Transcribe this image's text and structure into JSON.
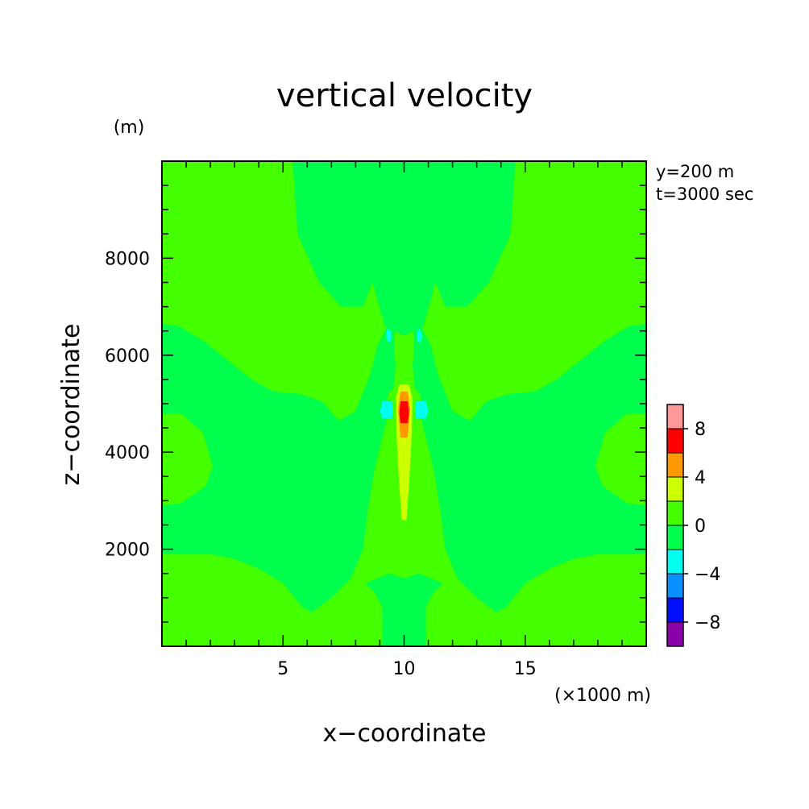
{
  "chart_data": {
    "type": "heatmap",
    "title": "vertical velocity",
    "xlabel": "x−coordinate",
    "ylabel": "z−coordinate",
    "x_unit": "(×1000 m)",
    "y_unit": "(m)",
    "annotations": [
      "y=200 m",
      "t=3000 sec"
    ],
    "xlim": [
      0,
      20
    ],
    "ylim": [
      0,
      10000
    ],
    "x_ticks": [
      5,
      10,
      15
    ],
    "y_ticks": [
      2000,
      4000,
      6000,
      8000
    ],
    "legend": {
      "placement": "right",
      "labels": [
        "8",
        "4",
        "0",
        "−4",
        "−8"
      ],
      "bins": [
        {
          "range": [
            -10,
            -8
          ],
          "color": "#8b00a8"
        },
        {
          "range": [
            -8,
            -6
          ],
          "color": "#0010ff"
        },
        {
          "range": [
            -6,
            -4
          ],
          "color": "#0a90ff"
        },
        {
          "range": [
            -4,
            -2
          ],
          "color": "#00ffee"
        },
        {
          "range": [
            -2,
            0
          ],
          "color": "#00ff4c"
        },
        {
          "range": [
            0,
            2
          ],
          "color": "#44ff00"
        },
        {
          "range": [
            2,
            4
          ],
          "color": "#ccff00"
        },
        {
          "range": [
            4,
            6
          ],
          "color": "#ff9900"
        },
        {
          "range": [
            6,
            8
          ],
          "color": "#ff0000"
        },
        {
          "range": [
            8,
            10
          ],
          "color": "#ff9999"
        }
      ]
    },
    "contour_regions": [
      {
        "name": "upper-center",
        "level_range": [
          -2,
          0
        ],
        "points": [
          [
            5.4,
            10000
          ],
          [
            14.6,
            10000
          ],
          [
            14.4,
            8500
          ],
          [
            13.5,
            7500
          ],
          [
            12.6,
            7000
          ],
          [
            11.7,
            7000
          ],
          [
            11.3,
            7500
          ],
          [
            10.8,
            6600
          ],
          [
            10.0,
            6400
          ],
          [
            9.2,
            6600
          ],
          [
            8.7,
            7500
          ],
          [
            8.3,
            7000
          ],
          [
            7.4,
            7000
          ],
          [
            6.5,
            7500
          ],
          [
            5.6,
            8500
          ]
        ]
      },
      {
        "name": "left-middle",
        "level_range": [
          -2,
          0
        ],
        "points": [
          [
            0,
            6650
          ],
          [
            0.7,
            6600
          ],
          [
            1.7,
            6300
          ],
          [
            2.7,
            5900
          ],
          [
            3.7,
            5500
          ],
          [
            4.6,
            5250
          ],
          [
            5.7,
            5200
          ],
          [
            6.6,
            5050
          ],
          [
            7.3,
            4650
          ],
          [
            8.0,
            4850
          ],
          [
            8.6,
            5600
          ],
          [
            8.9,
            6200
          ],
          [
            9.3,
            6600
          ],
          [
            9.6,
            6500
          ],
          [
            9.6,
            5800
          ],
          [
            9.3,
            5100
          ],
          [
            9.3,
            4700
          ],
          [
            8.8,
            3700
          ],
          [
            8.5,
            2800
          ],
          [
            8.3,
            2000
          ],
          [
            7.8,
            1400
          ],
          [
            7.0,
            1000
          ],
          [
            6.2,
            700
          ],
          [
            5.8,
            800
          ],
          [
            5.0,
            1300
          ],
          [
            4.0,
            1600
          ],
          [
            3.0,
            1800
          ],
          [
            2.0,
            1900
          ],
          [
            0,
            1900
          ],
          [
            0,
            2900
          ],
          [
            0.8,
            2950
          ],
          [
            1.8,
            3300
          ],
          [
            2.1,
            3700
          ],
          [
            1.7,
            4400
          ],
          [
            0.8,
            4800
          ],
          [
            0,
            4800
          ]
        ]
      },
      {
        "name": "right-middle",
        "level_range": [
          -2,
          0
        ],
        "points": [
          [
            20,
            6650
          ],
          [
            19.3,
            6600
          ],
          [
            18.3,
            6300
          ],
          [
            17.3,
            5900
          ],
          [
            16.3,
            5500
          ],
          [
            15.4,
            5250
          ],
          [
            14.3,
            5200
          ],
          [
            13.4,
            5050
          ],
          [
            12.7,
            4650
          ],
          [
            12.0,
            4850
          ],
          [
            11.4,
            5600
          ],
          [
            11.1,
            6200
          ],
          [
            10.7,
            6600
          ],
          [
            10.4,
            6500
          ],
          [
            10.4,
            5800
          ],
          [
            10.7,
            5100
          ],
          [
            10.7,
            4700
          ],
          [
            11.2,
            3700
          ],
          [
            11.5,
            2800
          ],
          [
            11.7,
            2000
          ],
          [
            12.2,
            1400
          ],
          [
            13.0,
            1000
          ],
          [
            13.8,
            700
          ],
          [
            14.2,
            800
          ],
          [
            15.0,
            1300
          ],
          [
            16.0,
            1600
          ],
          [
            17.0,
            1800
          ],
          [
            18.0,
            1900
          ],
          [
            20,
            1900
          ],
          [
            20,
            2900
          ],
          [
            19.2,
            2950
          ],
          [
            18.2,
            3300
          ],
          [
            17.9,
            3700
          ],
          [
            18.3,
            4400
          ],
          [
            19.2,
            4800
          ],
          [
            20,
            4800
          ]
        ]
      },
      {
        "name": "bottom-center",
        "level_range": [
          -2,
          0
        ],
        "points": [
          [
            9.1,
            0
          ],
          [
            10.9,
            0
          ],
          [
            10.9,
            800
          ],
          [
            11.2,
            1100
          ],
          [
            11.6,
            1300
          ],
          [
            11.1,
            1400
          ],
          [
            10.6,
            1500
          ],
          [
            10.0,
            1400
          ],
          [
            9.4,
            1500
          ],
          [
            8.9,
            1400
          ],
          [
            8.4,
            1300
          ],
          [
            8.8,
            1100
          ],
          [
            9.1,
            800
          ]
        ]
      },
      {
        "name": "upper-inner-left",
        "level_range": [
          -2,
          0
        ],
        "points": [
          [
            9.5,
            6500
          ],
          [
            9.65,
            5800
          ],
          [
            9.55,
            5300
          ],
          [
            9.3,
            5200
          ],
          [
            9.2,
            5800
          ],
          [
            9.3,
            6300
          ]
        ]
      },
      {
        "name": "upper-inner-right",
        "level_range": [
          -2,
          0
        ],
        "points": [
          [
            10.5,
            6500
          ],
          [
            10.35,
            5800
          ],
          [
            10.45,
            5300
          ],
          [
            10.7,
            5200
          ],
          [
            10.8,
            5800
          ],
          [
            10.7,
            6300
          ]
        ]
      },
      {
        "name": "upper-blob-left",
        "level_range": [
          -4,
          -2
        ],
        "points": [
          [
            9.3,
            6550
          ],
          [
            9.45,
            6500
          ],
          [
            9.45,
            6300
          ],
          [
            9.35,
            6250
          ],
          [
            9.25,
            6400
          ]
        ]
      },
      {
        "name": "upper-blob-right",
        "level_range": [
          -4,
          -2
        ],
        "points": [
          [
            10.65,
            6550
          ],
          [
            10.55,
            6500
          ],
          [
            10.55,
            6300
          ],
          [
            10.65,
            6250
          ],
          [
            10.75,
            6400
          ]
        ]
      },
      {
        "name": "mid-blob-left",
        "level_range": [
          -4,
          -2
        ],
        "points": [
          [
            9.1,
            5050
          ],
          [
            9.5,
            5050
          ],
          [
            9.55,
            4850
          ],
          [
            9.5,
            4700
          ],
          [
            9.1,
            4700
          ],
          [
            9.0,
            4850
          ]
        ]
      },
      {
        "name": "mid-blob-right",
        "level_range": [
          -4,
          -2
        ],
        "points": [
          [
            10.9,
            5050
          ],
          [
            10.5,
            5050
          ],
          [
            10.45,
            4850
          ],
          [
            10.5,
            4700
          ],
          [
            10.9,
            4700
          ],
          [
            11.0,
            4850
          ]
        ]
      },
      {
        "name": "updraft-core-2to4",
        "level_range": [
          2,
          4
        ],
        "points": [
          [
            9.8,
            5400
          ],
          [
            10.2,
            5400
          ],
          [
            10.35,
            5100
          ],
          [
            10.3,
            4200
          ],
          [
            10.2,
            3300
          ],
          [
            10.1,
            2600
          ],
          [
            9.9,
            2600
          ],
          [
            9.8,
            3300
          ],
          [
            9.7,
            4200
          ],
          [
            9.65,
            5100
          ]
        ]
      },
      {
        "name": "updraft-core-4to6",
        "level_range": [
          4,
          6
        ],
        "points": [
          [
            9.85,
            5250
          ],
          [
            10.15,
            5250
          ],
          [
            10.25,
            4900
          ],
          [
            10.15,
            4300
          ],
          [
            9.85,
            4300
          ],
          [
            9.75,
            4900
          ]
        ]
      },
      {
        "name": "updraft-core-6to8",
        "level_range": [
          6,
          8
        ],
        "points": [
          [
            9.85,
            5050
          ],
          [
            10.15,
            5050
          ],
          [
            10.2,
            4800
          ],
          [
            10.15,
            4600
          ],
          [
            9.85,
            4600
          ],
          [
            9.8,
            4800
          ]
        ]
      }
    ]
  }
}
